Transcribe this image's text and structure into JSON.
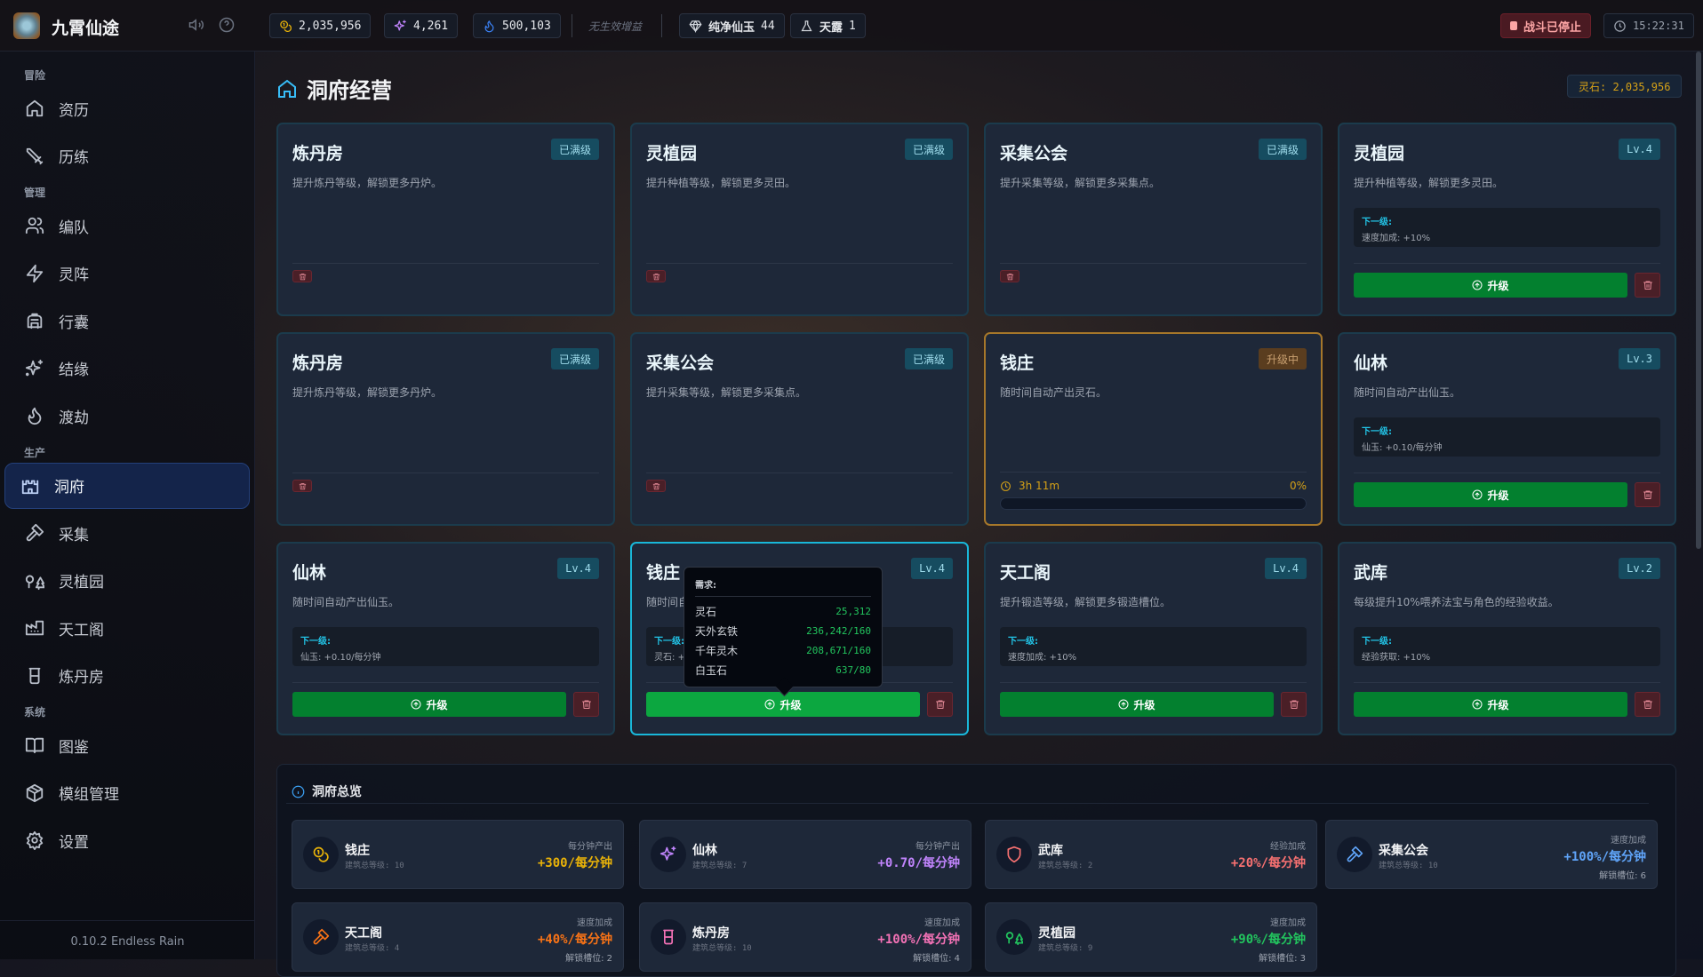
{
  "app": {
    "title": "九霄仙途",
    "icons": [
      "volume-icon",
      "help-icon"
    ]
  },
  "topbar": {
    "resources": [
      {
        "icon": "coins-icon",
        "value": "2,035,956",
        "color": "#eab308"
      },
      {
        "icon": "sparkle-icon",
        "value": "4,261",
        "color": "#c084fc"
      },
      {
        "icon": "flame-icon",
        "value": "500,103",
        "color": "#3b82f6"
      }
    ],
    "no_buff": "无生效增益",
    "items": [
      {
        "icon": "gem-icon",
        "label": "纯净仙玉",
        "count": "44"
      },
      {
        "icon": "flask-icon",
        "label": "天露",
        "count": "1"
      }
    ],
    "battle_status": "战斗已停止",
    "clock": "15:22:31"
  },
  "sidebar": {
    "sections": [
      {
        "label": "冒险",
        "items": [
          {
            "label": "资历",
            "icon": "home-icon"
          },
          {
            "label": "历练",
            "icon": "sword-icon"
          }
        ]
      },
      {
        "label": "管理",
        "items": [
          {
            "label": "编队",
            "icon": "users-icon"
          },
          {
            "label": "灵阵",
            "icon": "zap-icon"
          },
          {
            "label": "行囊",
            "icon": "backpack-icon"
          },
          {
            "label": "结缘",
            "icon": "sparkles-icon"
          },
          {
            "label": "渡劫",
            "icon": "flame-icon"
          }
        ]
      },
      {
        "label": "生产",
        "items": [
          {
            "label": "洞府",
            "icon": "castle-icon",
            "active": true
          },
          {
            "label": "采集",
            "icon": "hammer-icon"
          },
          {
            "label": "灵植园",
            "icon": "trees-icon"
          },
          {
            "label": "天工阁",
            "icon": "factory-icon"
          },
          {
            "label": "炼丹房",
            "icon": "beaker-icon"
          }
        ]
      },
      {
        "label": "系统",
        "items": [
          {
            "label": "图鉴",
            "icon": "book-icon"
          },
          {
            "label": "模组管理",
            "icon": "package-icon"
          },
          {
            "label": "设置",
            "icon": "gear-icon"
          }
        ]
      }
    ],
    "version": "0.10.2 Endless Rain"
  },
  "page": {
    "title": "洞府经营",
    "stone_badge": "灵石: 2,035,956"
  },
  "buildings": [
    {
      "name": "炼丹房",
      "badge": "已满级",
      "desc": "提升炼丹等级，解锁更多丹炉。",
      "state": "max"
    },
    {
      "name": "灵植园",
      "badge": "已满级",
      "desc": "提升种植等级，解锁更多灵田。",
      "state": "max"
    },
    {
      "name": "采集公会",
      "badge": "已满级",
      "desc": "提升采集等级，解锁更多采集点。",
      "state": "max"
    },
    {
      "name": "灵植园",
      "badge": "Lv.4",
      "desc": "提升种植等级，解锁更多灵田。",
      "state": "upgradable",
      "next_label": "下一级:",
      "next_value": "速度加成: +10%"
    },
    {
      "name": "炼丹房",
      "badge": "已满级",
      "desc": "提升炼丹等级，解锁更多丹炉。",
      "state": "max"
    },
    {
      "name": "采集公会",
      "badge": "已满级",
      "desc": "提升采集等级，解锁更多采集点。",
      "state": "max"
    },
    {
      "name": "钱庄",
      "badge": "升级中",
      "desc": "随时间自动产出灵石。",
      "state": "upgrading",
      "time_left": "3h 11m",
      "progress_label": "0%",
      "progress": 0
    },
    {
      "name": "仙林",
      "badge": "Lv.3",
      "desc": "随时间自动产出仙玉。",
      "state": "upgradable",
      "next_label": "下一级:",
      "next_value": "仙玉: +0.10/每分钟"
    },
    {
      "name": "仙林",
      "badge": "Lv.4",
      "desc": "随时间自动产出仙玉。",
      "state": "upgradable",
      "next_label": "下一级:",
      "next_value": "仙玉: +0.10/每分钟"
    },
    {
      "name": "钱庄",
      "badge": "Lv.4",
      "desc": "随时间自",
      "state": "upgradable",
      "highlight": true,
      "next_label": "下一级:",
      "next_value": "灵石: +"
    },
    {
      "name": "天工阁",
      "badge": "Lv.4",
      "desc": "提升锻造等级，解锁更多锻造槽位。",
      "state": "upgradable",
      "next_label": "下一级:",
      "next_value": "速度加成: +10%"
    },
    {
      "name": "武库",
      "badge": "Lv.2",
      "desc": "每级提升10%喂养法宝与角色的经验收益。",
      "state": "upgradable",
      "next_label": "下一级:",
      "next_value": "经验获取: +10%"
    }
  ],
  "upgrade_label": "升级",
  "tooltip": {
    "title": "需求:",
    "rows": [
      {
        "name": "灵石",
        "value": "25,312"
      },
      {
        "name": "天外玄铁",
        "value": "236,242/160"
      },
      {
        "name": "千年灵木",
        "value": "208,671/160"
      },
      {
        "name": "白玉石",
        "value": "637/80"
      }
    ]
  },
  "overview": {
    "title": "洞府总览",
    "items": [
      {
        "name": "钱庄",
        "level": "建筑总等级: 10",
        "key": "每分钟产出",
        "value": "+300/每分钟",
        "color": "#eab308",
        "icon": "coins-icon"
      },
      {
        "name": "仙林",
        "level": "建筑总等级: 7",
        "key": "每分钟产出",
        "value": "+0.70/每分钟",
        "color": "#c084fc",
        "icon": "sparkle-icon"
      },
      {
        "name": "武库",
        "level": "建筑总等级: 2",
        "key": "经验加成",
        "value": "+20%/每分钟",
        "color": "#f87171",
        "icon": "shield-icon"
      },
      {
        "name": "采集公会",
        "level": "建筑总等级: 10",
        "key": "速度加成",
        "value": "+100%/每分钟",
        "slots": "解锁槽位: 6",
        "color": "#60a5fa",
        "icon": "hammer-icon"
      },
      {
        "name": "天工阁",
        "level": "建筑总等级: 4",
        "key": "速度加成",
        "value": "+40%/每分钟",
        "slots": "解锁槽位: 2",
        "color": "#f97316",
        "icon": "hammer-icon"
      },
      {
        "name": "炼丹房",
        "level": "建筑总等级: 10",
        "key": "速度加成",
        "value": "+100%/每分钟",
        "slots": "解锁槽位: 4",
        "color": "#f472b6",
        "icon": "beaker-icon"
      },
      {
        "name": "灵植园",
        "level": "建筑总等级: 9",
        "key": "速度加成",
        "value": "+90%/每分钟",
        "slots": "解锁槽位: 3",
        "color": "#22c55e",
        "icon": "trees-icon"
      }
    ]
  }
}
